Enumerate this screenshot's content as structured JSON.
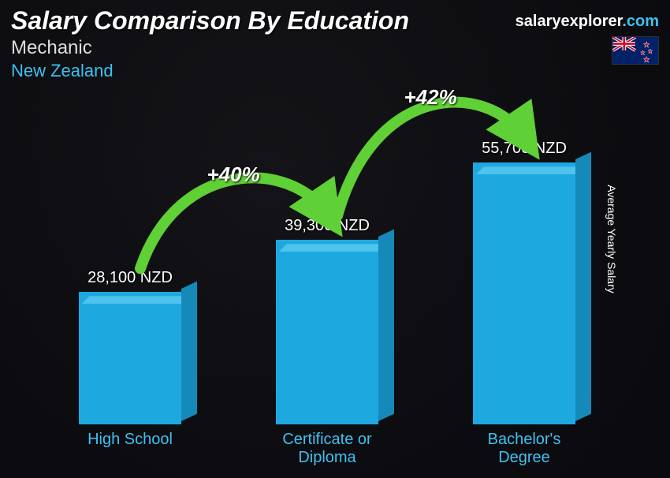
{
  "header": {
    "title": "Salary Comparison By Education",
    "subtitle": "Mechanic",
    "country": "New Zealand",
    "country_color": "#3ec1f0"
  },
  "brand": {
    "text_a": "salaryexplorer",
    "text_b": ".com"
  },
  "axis": {
    "ylabel": "Average Yearly Salary"
  },
  "chart": {
    "type": "bar",
    "max_value": 60000,
    "bar_front_color": "#1ea8e0",
    "bar_top_color": "#4fc3ed",
    "bar_side_color": "#1589b8",
    "bars": [
      {
        "label": "High School",
        "value": 28100,
        "value_label": "28,100 NZD"
      },
      {
        "label": "Certificate or\nDiploma",
        "value": 39300,
        "value_label": "39,300 NZD"
      },
      {
        "label": "Bachelor's\nDegree",
        "value": 55700,
        "value_label": "55,700 NZD"
      }
    ]
  },
  "arcs": [
    {
      "label": "+40%",
      "color": "#5fd035",
      "from": 0,
      "to": 1
    },
    {
      "label": "+42%",
      "color": "#5fd035",
      "from": 1,
      "to": 2
    }
  ],
  "flag": {
    "bg": "#012169",
    "cross": "#ffffff",
    "cross2": "#C8102E",
    "star": "#C8102E"
  }
}
